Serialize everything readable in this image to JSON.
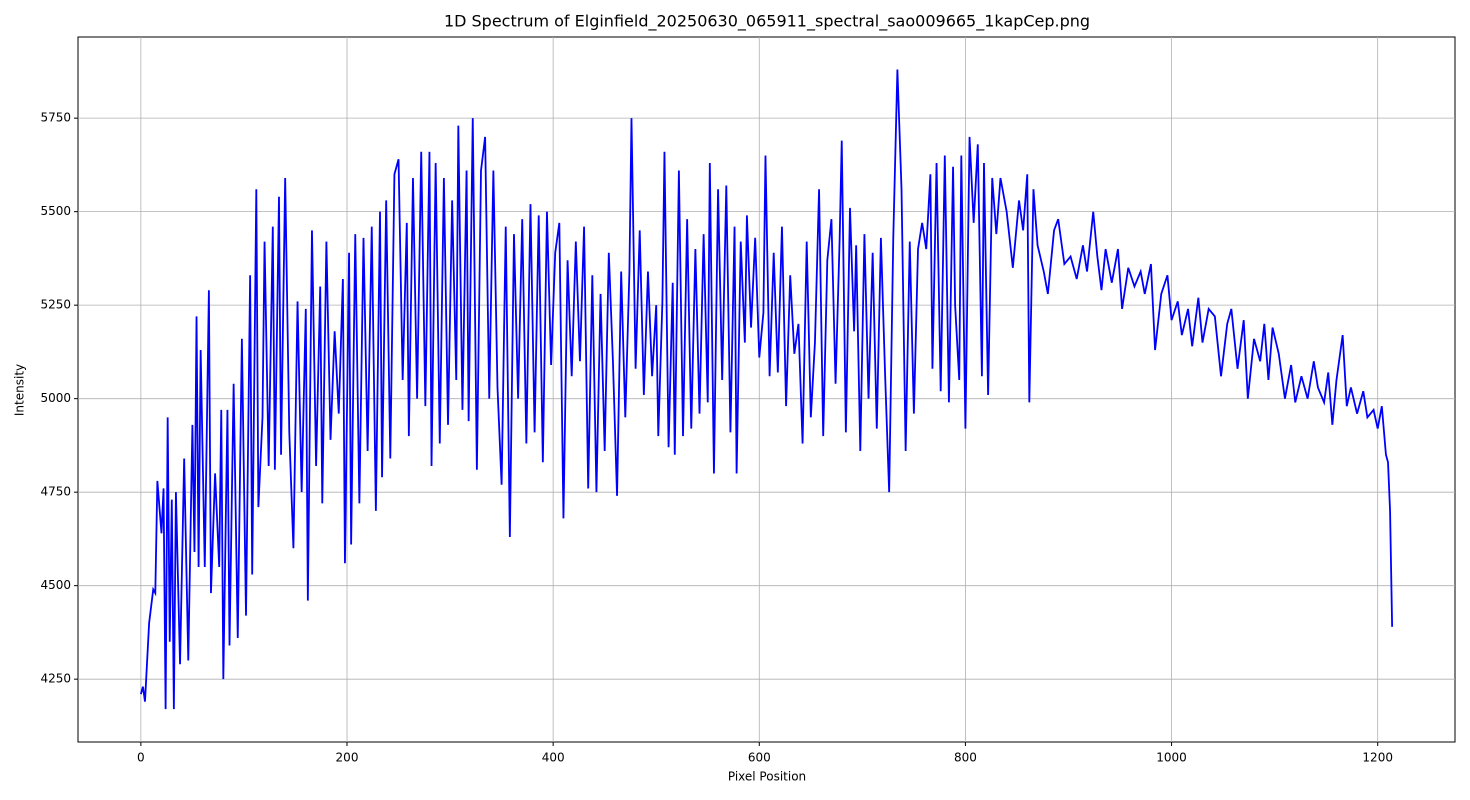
{
  "chart_data": {
    "type": "line",
    "title": "1D Spectrum of Elginfield_20250630_065911_spectral_sao009665_1kapCep.png",
    "x_label": "Pixel Position",
    "y_label": "Intensity",
    "xlim": [
      -61,
      1275
    ],
    "ylim": [
      4082,
      5967
    ],
    "xticks": [
      0,
      200,
      400,
      600,
      800,
      1000,
      1200
    ],
    "yticks": [
      4250,
      4500,
      4750,
      5000,
      5250,
      5500,
      5750
    ],
    "grid": true,
    "x": [
      0,
      2,
      4,
      8,
      12,
      14,
      16,
      20,
      22,
      24,
      26,
      28,
      30,
      32,
      34,
      38,
      42,
      46,
      50,
      52,
      54,
      56,
      58,
      62,
      66,
      68,
      72,
      76,
      78,
      80,
      84,
      86,
      90,
      94,
      98,
      102,
      106,
      108,
      112,
      114,
      118,
      120,
      124,
      128,
      130,
      134,
      136,
      140,
      144,
      148,
      152,
      156,
      160,
      162,
      166,
      170,
      174,
      176,
      180,
      184,
      188,
      192,
      196,
      198,
      202,
      204,
      208,
      212,
      216,
      220,
      224,
      228,
      232,
      234,
      238,
      242,
      246,
      250,
      254,
      258,
      260,
      264,
      268,
      272,
      276,
      280,
      282,
      286,
      290,
      294,
      298,
      302,
      306,
      308,
      312,
      316,
      318,
      322,
      326,
      330,
      334,
      338,
      342,
      346,
      350,
      354,
      358,
      362,
      366,
      370,
      374,
      378,
      382,
      386,
      390,
      394,
      398,
      402,
      406,
      410,
      414,
      418,
      422,
      426,
      430,
      434,
      438,
      442,
      446,
      450,
      454,
      458,
      462,
      466,
      470,
      474,
      476,
      480,
      484,
      488,
      492,
      496,
      500,
      502,
      506,
      508,
      512,
      516,
      518,
      522,
      526,
      530,
      534,
      538,
      542,
      546,
      550,
      552,
      556,
      560,
      564,
      568,
      572,
      576,
      578,
      582,
      586,
      588,
      592,
      596,
      600,
      604,
      606,
      610,
      614,
      618,
      622,
      626,
      630,
      634,
      638,
      642,
      646,
      650,
      654,
      658,
      662,
      666,
      670,
      674,
      678,
      680,
      684,
      688,
      692,
      694,
      698,
      702,
      706,
      710,
      714,
      718,
      722,
      726,
      730,
      734,
      738,
      742,
      746,
      750,
      754,
      758,
      762,
      766,
      768,
      772,
      776,
      778,
      780,
      784,
      788,
      790,
      794,
      796,
      800,
      804,
      808,
      812,
      816,
      818,
      822,
      826,
      830,
      834,
      840,
      846,
      852,
      856,
      860,
      862,
      866,
      870,
      876,
      880,
      886,
      890,
      896,
      902,
      908,
      914,
      918,
      924,
      928,
      932,
      936,
      942,
      948,
      952,
      958,
      964,
      970,
      974,
      980,
      984,
      990,
      996,
      1000,
      1006,
      1010,
      1016,
      1020,
      1026,
      1030,
      1036,
      1042,
      1048,
      1054,
      1058,
      1064,
      1070,
      1074,
      1080,
      1086,
      1090,
      1094,
      1098,
      1104,
      1110,
      1116,
      1120,
      1126,
      1132,
      1138,
      1142,
      1148,
      1152,
      1156,
      1160,
      1166,
      1170,
      1174,
      1180,
      1186,
      1190,
      1196,
      1200,
      1204,
      1208,
      1210,
      1212,
      1214
    ],
    "series": [
      {
        "name": "Intensity",
        "color": "#0000ff",
        "values": [
          4210,
          4230,
          4190,
          4400,
          4490,
          4480,
          4780,
          4640,
          4760,
          4170,
          4950,
          4350,
          4730,
          4170,
          4750,
          4290,
          4840,
          4300,
          4930,
          4590,
          5220,
          4550,
          5130,
          4550,
          5290,
          4480,
          4800,
          4550,
          4970,
          4250,
          4970,
          4340,
          5040,
          4360,
          5160,
          4420,
          5330,
          4530,
          5560,
          4710,
          4950,
          5420,
          4820,
          5460,
          4810,
          5540,
          4850,
          5590,
          4910,
          4600,
          5260,
          4750,
          5240,
          4460,
          5450,
          4820,
          5300,
          4720,
          5420,
          4890,
          5180,
          4960,
          5320,
          4560,
          5390,
          4610,
          5440,
          4720,
          5430,
          4860,
          5460,
          4700,
          5500,
          4790,
          5530,
          4840,
          5600,
          5640,
          5050,
          5470,
          4900,
          5590,
          5000,
          5660,
          4980,
          5660,
          4820,
          5630,
          4880,
          5590,
          4930,
          5530,
          5050,
          5730,
          4970,
          5610,
          4940,
          5750,
          4810,
          5610,
          5700,
          5000,
          5610,
          5030,
          4770,
          5460,
          4630,
          5440,
          5000,
          5480,
          4880,
          5520,
          4910,
          5490,
          4830,
          5500,
          5090,
          5390,
          5470,
          4680,
          5370,
          5060,
          5420,
          5100,
          5460,
          4760,
          5330,
          4750,
          5280,
          4860,
          5390,
          5100,
          4740,
          5340,
          4950,
          5340,
          5750,
          5080,
          5450,
          5010,
          5340,
          5060,
          5250,
          4900,
          5260,
          5660,
          4870,
          5310,
          4850,
          5610,
          4900,
          5480,
          4920,
          5400,
          4960,
          5440,
          4990,
          5630,
          4800,
          5560,
          5050,
          5570,
          4910,
          5460,
          4800,
          5420,
          5150,
          5490,
          5190,
          5430,
          5110,
          5230,
          5650,
          5060,
          5390,
          5070,
          5460,
          4980,
          5330,
          5120,
          5200,
          4880,
          5420,
          4950,
          5150,
          5560,
          4900,
          5370,
          5480,
          5040,
          5430,
          5690,
          4910,
          5510,
          5180,
          5410,
          4860,
          5440,
          5000,
          5390,
          4920,
          5430,
          5070,
          4750,
          5430,
          5880,
          5560,
          4860,
          5420,
          4960,
          5400,
          5470,
          5400,
          5600,
          5080,
          5630,
          5020,
          5330,
          5650,
          4990,
          5620,
          5250,
          5050,
          5650,
          4920,
          5700,
          5470,
          5680,
          5060,
          5630,
          5010,
          5590,
          5440,
          5590,
          5500,
          5350,
          5530,
          5450,
          5600,
          4990,
          5560,
          5410,
          5340,
          5280,
          5450,
          5480,
          5360,
          5380,
          5320,
          5410,
          5340,
          5500,
          5380,
          5290,
          5400,
          5310,
          5400,
          5240,
          5350,
          5300,
          5340,
          5280,
          5360,
          5130,
          5280,
          5330,
          5210,
          5260,
          5170,
          5240,
          5140,
          5270,
          5150,
          5240,
          5220,
          5060,
          5200,
          5240,
          5080,
          5210,
          5000,
          5160,
          5100,
          5200,
          5050,
          5190,
          5120,
          5000,
          5090,
          4990,
          5060,
          5000,
          5100,
          5030,
          4990,
          5070,
          4930,
          5050,
          5170,
          4980,
          5030,
          4960,
          5020,
          4950,
          4970,
          4920,
          4980,
          4850,
          4830,
          4700,
          4390
        ]
      }
    ]
  }
}
